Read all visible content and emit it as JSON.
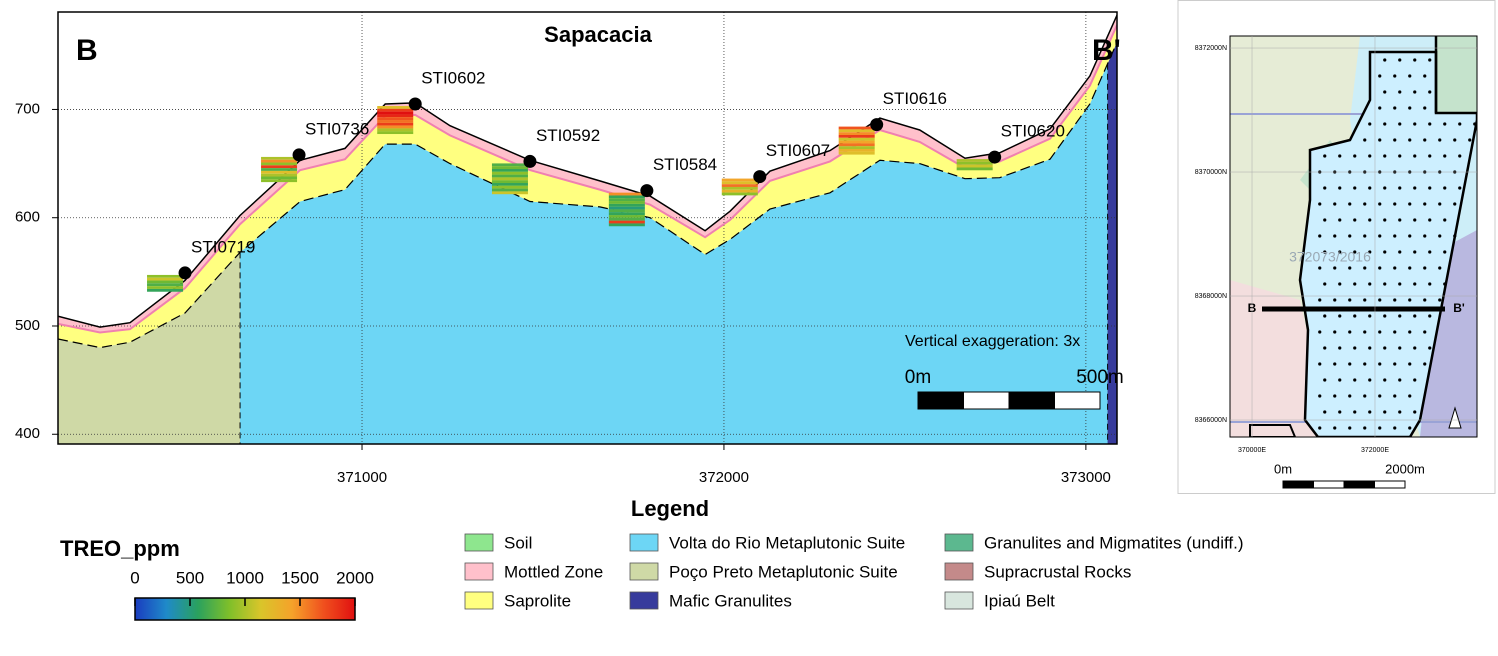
{
  "chart_data": {
    "type": "section",
    "title": "Sapacacia",
    "section_labels": [
      "B",
      "B'"
    ],
    "note": "Vertical exaggeration: 3x",
    "scale_labels": [
      "0m",
      "500m"
    ],
    "xlim": [
      370160,
      373086
    ],
    "ylim": [
      391,
      790
    ],
    "xticks": [
      371000,
      372000,
      373000
    ],
    "yticks": [
      400,
      500,
      600,
      700
    ],
    "grid": true,
    "x": [
      370160,
      370276,
      370359,
      370511,
      370663,
      370829,
      370953,
      371064,
      371147,
      371243,
      371464,
      371657,
      371796,
      371948,
      372017,
      372127,
      372293,
      372431,
      372541,
      372666,
      372762,
      372901,
      373011,
      373086
    ],
    "legend_title": "Legend",
    "units": [
      {
        "name": "Soil",
        "color": "#8ee68e"
      },
      {
        "name": "Mottled Zone",
        "color": "#ffc0cb",
        "top": [
          509,
          499,
          503,
          542,
          602,
          653,
          664,
          705,
          706,
          685,
          653,
          634,
          620,
          588,
          606,
          643,
          662,
          692,
          681,
          655,
          660,
          682,
          731,
          787
        ]
      },
      {
        "name": "Saprolite",
        "color": "#ffff80",
        "top": [
          502,
          494,
          497,
          535,
          594,
          644,
          654,
          694,
          695,
          676,
          644,
          626,
          612,
          582,
          598,
          634,
          652,
          681,
          670,
          646,
          652,
          673,
          722,
          778
        ]
      },
      {
        "name": "Volta do Rio Metaplutonic Suite",
        "color": "#6dd6f5",
        "top": [
          488,
          480,
          485,
          512,
          568,
          615,
          626,
          668,
          668,
          650,
          615,
          610,
          600,
          566,
          580,
          608,
          623,
          653,
          650,
          636,
          637,
          654,
          705,
          762
        ]
      },
      {
        "name": "Poço Preto Metaplutonic Suite",
        "color": "#cfd9a6",
        "x_max": 370663
      },
      {
        "name": "Mafic Granulites",
        "color": "#373b9c",
        "x_min": 373060
      },
      {
        "name": "Granulites and Migmatites (undiff.)",
        "color": "#5cb88f"
      },
      {
        "name": "Supracrustal Rocks",
        "color": "#c48a8a"
      },
      {
        "name": "Ipiaú Belt",
        "color": "#d8e6de"
      }
    ],
    "holes": [
      {
        "name": "STI0719",
        "x": 370511,
        "y": 549,
        "treo_ppm": [
          900,
          1100,
          800,
          700,
          900,
          600
        ]
      },
      {
        "name": "STI0736",
        "x": 370826,
        "y": 658,
        "treo_ppm": [
          1000,
          1500,
          900,
          1800,
          700,
          1200,
          1000,
          800,
          900
        ]
      },
      {
        "name": "STI0602",
        "x": 371147,
        "y": 705,
        "treo_ppm": [
          1200,
          1800,
          2000,
          1900,
          1700,
          1600,
          1800,
          1500,
          1000,
          900
        ]
      },
      {
        "name": "STI0592",
        "x": 371464,
        "y": 652,
        "treo_ppm": [
          700,
          800,
          600,
          900,
          700,
          1000,
          800,
          600,
          900,
          700,
          1100
        ]
      },
      {
        "name": "STI0584",
        "x": 371787,
        "y": 625,
        "treo_ppm": [
          1500,
          600,
          700,
          800,
          600,
          500,
          700,
          600,
          800,
          700,
          1800,
          600
        ]
      },
      {
        "name": "STI0607",
        "x": 372099,
        "y": 638,
        "treo_ppm": [
          1400,
          1200,
          1600,
          1000,
          1300,
          900
        ]
      },
      {
        "name": "STI0616",
        "x": 372422,
        "y": 686,
        "treo_ppm": [
          1700,
          1200,
          1500,
          1800,
          1100,
          1400,
          1600,
          1000,
          1300,
          1200
        ]
      },
      {
        "name": "STI0620",
        "x": 372748,
        "y": 656,
        "treo_ppm": [
          1000,
          900,
          1100,
          800
        ]
      }
    ],
    "colorbar": {
      "title": "TREO_ppm",
      "lim": [
        0,
        2000
      ],
      "ticks": [
        0,
        500,
        1000,
        1500,
        2000
      ],
      "colors": [
        "#1a3cbf",
        "#1f8ac9",
        "#2aa15e",
        "#7fbf2a",
        "#d9c52a",
        "#f5a22a",
        "#f0501e",
        "#e01010"
      ]
    }
  },
  "inset_map": {
    "xlim": [
      369642,
      373659
    ],
    "ylim": [
      8365726,
      8372194
    ],
    "xticks": [
      {
        "value": 370000,
        "label": "370000E"
      },
      {
        "value": 372000,
        "label": "372000E"
      }
    ],
    "yticks": [
      {
        "value": 8366000,
        "label": "8366000N"
      },
      {
        "value": 8368000,
        "label": "8368000N"
      },
      {
        "value": 8370000,
        "label": "8370000N"
      },
      {
        "value": 8372000,
        "label": "8372000N"
      }
    ],
    "section_labels": [
      "B",
      "B'"
    ],
    "tenement": "372073/2016",
    "scale_labels": [
      "0m",
      "2000m"
    ]
  }
}
